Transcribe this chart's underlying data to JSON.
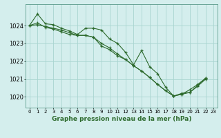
{
  "background_color": "#d4eeed",
  "grid_color": "#a8d4d0",
  "line_color": "#2d6a2d",
  "title": "Graphe pression niveau de la mer (hPa)",
  "xlim": [
    -0.5,
    23.5
  ],
  "ylim": [
    1019.4,
    1025.2
  ],
  "yticks": [
    1020,
    1021,
    1022,
    1023,
    1024
  ],
  "xtick_labels": [
    "0",
    "1",
    "2",
    "3",
    "4",
    "5",
    "6",
    "7",
    "8",
    "9",
    "10",
    "11",
    "12",
    "13",
    "14",
    "15",
    "16",
    "17",
    "18",
    "19",
    "20",
    "21",
    "22",
    "23"
  ],
  "series1": [
    1024.0,
    1024.65,
    1024.1,
    1024.05,
    1023.85,
    1023.7,
    1023.5,
    1023.85,
    1023.85,
    1023.75,
    1023.25,
    1023.0,
    1022.5,
    1021.8,
    1022.6,
    1021.7,
    1021.3,
    1020.55,
    1020.05,
    1020.15,
    1020.4,
    1020.7,
    1021.05,
    null
  ],
  "series2": [
    1024.0,
    1024.15,
    1023.9,
    1023.8,
    1023.65,
    1023.5,
    1023.45,
    1023.45,
    1023.35,
    1022.85,
    1022.65,
    1022.3,
    1022.1,
    1021.75,
    1021.45,
    1021.1,
    1020.7,
    1020.35,
    1020.05,
    1020.15,
    1020.25,
    1020.6,
    1021.0,
    null
  ],
  "series3": [
    1024.0,
    1024.05,
    1023.95,
    1023.85,
    1023.75,
    1023.6,
    1023.45,
    1023.45,
    1023.35,
    1023.0,
    1022.75,
    1022.4,
    1022.1,
    1021.75,
    1021.45,
    1021.1,
    1020.7,
    1020.35,
    1020.05,
    1020.2,
    1020.25,
    1020.65,
    1021.05,
    null
  ]
}
